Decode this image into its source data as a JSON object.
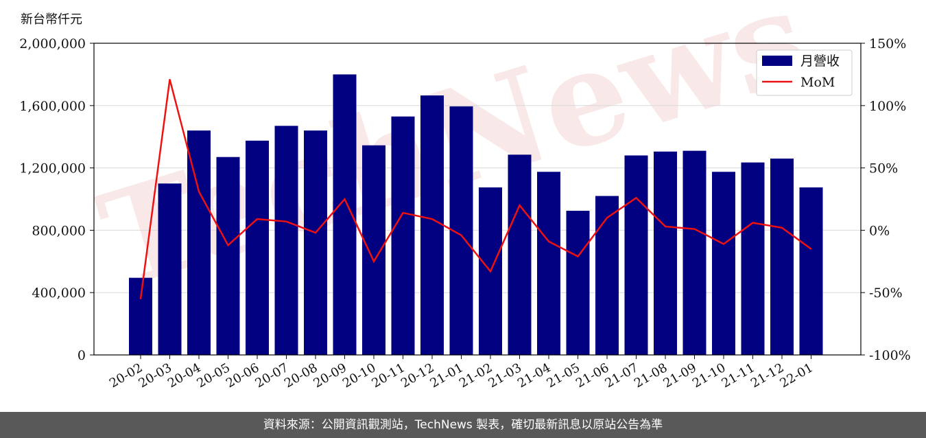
{
  "unit_label": "新台幣仟元",
  "footer_text": "資料來源：公開資訊觀測站，TechNews 製表，確切最新訊息以原站公告為準",
  "watermark_text": "TechNews",
  "colors": {
    "bar": "#000080",
    "line": "#ee1111",
    "watermark": "#f5d6d6",
    "footer_bg": "#595959"
  },
  "chart_data": {
    "type": "bar",
    "categories": [
      "20-02",
      "20-03",
      "20-04",
      "20-05",
      "20-06",
      "20-07",
      "20-08",
      "20-09",
      "20-10",
      "20-11",
      "20-12",
      "21-01",
      "21-02",
      "21-03",
      "21-04",
      "21-05",
      "21-06",
      "21-07",
      "21-08",
      "21-09",
      "21-10",
      "21-11",
      "21-12",
      "22-01"
    ],
    "series": [
      {
        "name": "月營收",
        "type": "bar",
        "axis": "left",
        "values": [
          495000,
          1100000,
          1440000,
          1270000,
          1375000,
          1470000,
          1440000,
          1800000,
          1345000,
          1530000,
          1665000,
          1595000,
          1075000,
          1285000,
          1175000,
          925000,
          1020000,
          1280000,
          1305000,
          1310000,
          1175000,
          1235000,
          1260000,
          1075000
        ]
      },
      {
        "name": "MoM",
        "type": "line",
        "axis": "right",
        "values": [
          -55,
          121,
          31,
          -12,
          9,
          7,
          -2,
          25,
          -25,
          14,
          9,
          -4,
          -33,
          20,
          -9,
          -21,
          10,
          26,
          3,
          1,
          -11,
          6,
          2,
          -15
        ]
      }
    ],
    "y_left": {
      "ylim": [
        0,
        2000000
      ],
      "ticks": [
        "0",
        "400,000",
        "800,000",
        "1,200,000",
        "1,600,000",
        "2,000,000"
      ],
      "tick_values": [
        0,
        400000,
        800000,
        1200000,
        1600000,
        2000000
      ]
    },
    "y_right": {
      "ylim": [
        -100,
        150
      ],
      "ticks": [
        "-100%",
        "-50%",
        "0%",
        "50%",
        "100%",
        "150%"
      ],
      "tick_values": [
        -100,
        -50,
        0,
        50,
        100,
        150
      ]
    },
    "grid": "horizontal",
    "legend_position": "top-right"
  }
}
